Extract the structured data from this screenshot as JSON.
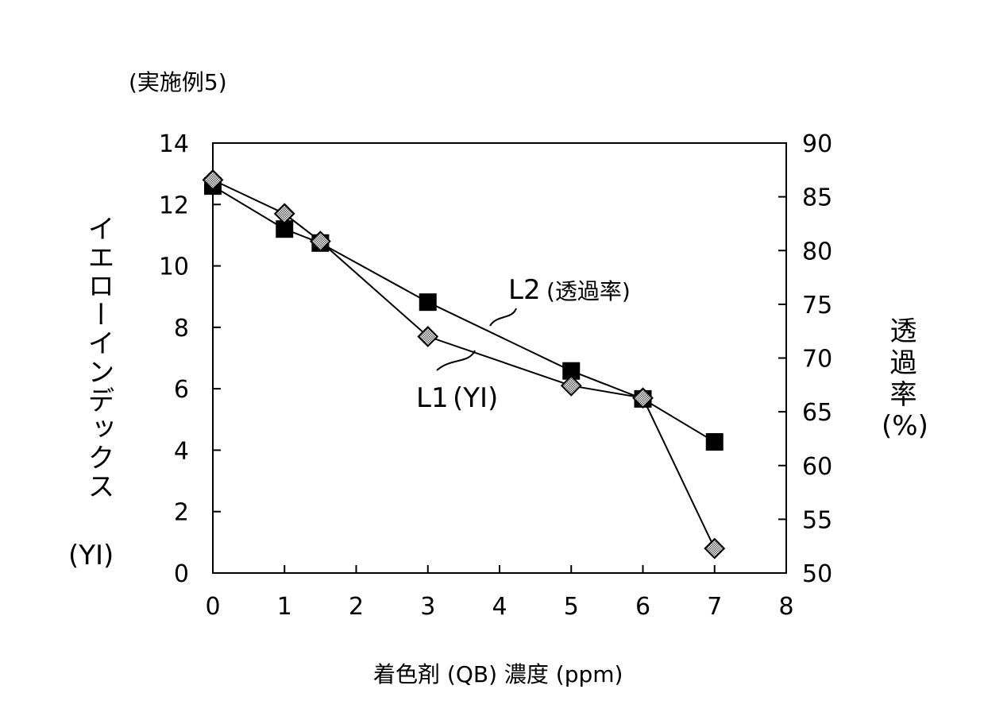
{
  "chart_data": {
    "type": "line",
    "title": "(実施例5)",
    "xlabel": "着色剤 (QB) 濃度 (ppm)",
    "ylabel_left": "イエローインデックス",
    "ylabel_left_unit": "(YI)",
    "ylabel_right": "透過率",
    "ylabel_right_unit": "(%)",
    "xlim": [
      0,
      8
    ],
    "ylim_left": [
      0,
      14
    ],
    "ylim_right": [
      50,
      90
    ],
    "x_ticks": [
      "0",
      "1",
      "2",
      "3",
      "4",
      "5",
      "6",
      "7",
      "8"
    ],
    "y_left_ticks": [
      "0",
      "2",
      "4",
      "6",
      "8",
      "10",
      "12",
      "14"
    ],
    "y_right_ticks": [
      "50",
      "55",
      "60",
      "65",
      "70",
      "75",
      "80",
      "85",
      "90"
    ],
    "grid": false,
    "series": [
      {
        "name": "L1 (YI)",
        "axis": "left",
        "marker": "diamond",
        "x": [
          0,
          1,
          1.5,
          3,
          5,
          6,
          7
        ],
        "y": [
          12.8,
          11.7,
          10.8,
          7.7,
          6.1,
          5.7,
          0.8
        ]
      },
      {
        "name": "L2 (透過率)",
        "axis": "right",
        "marker": "square",
        "x": [
          0,
          1,
          1.5,
          3,
          5,
          6,
          7
        ],
        "y": [
          86,
          82,
          80.7,
          75.2,
          68.8,
          66.2,
          62.2
        ]
      }
    ],
    "annotations": [
      {
        "text": "L1",
        "sub": "(YI)"
      },
      {
        "text": "L2",
        "sub": "(透過率)"
      }
    ]
  }
}
